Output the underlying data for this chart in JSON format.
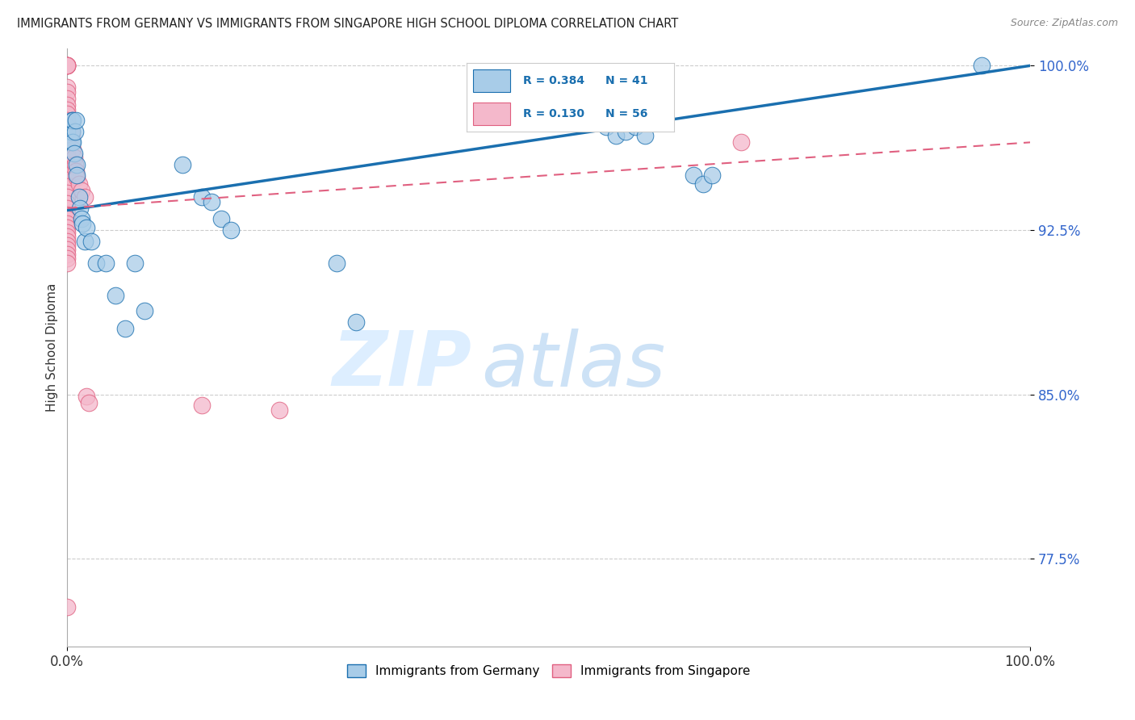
{
  "title": "IMMIGRANTS FROM GERMANY VS IMMIGRANTS FROM SINGAPORE HIGH SCHOOL DIPLOMA CORRELATION CHART",
  "source": "Source: ZipAtlas.com",
  "ylabel": "High School Diploma",
  "xlim": [
    0.0,
    1.0
  ],
  "ylim": [
    0.735,
    1.008
  ],
  "yticks": [
    0.775,
    0.85,
    0.925,
    1.0
  ],
  "ytick_labels": [
    "77.5%",
    "85.0%",
    "92.5%",
    "100.0%"
  ],
  "xtick_labels_pos": [
    0.0,
    1.0
  ],
  "xtick_labels": [
    "0.0%",
    "100.0%"
  ],
  "legend_R1": "0.384",
  "legend_N1": "41",
  "legend_R2": "0.130",
  "legend_N2": "56",
  "color_germany": "#a8cce8",
  "color_singapore": "#f4b8cb",
  "color_trend_germany": "#1a6faf",
  "color_trend_singapore": "#e06080",
  "watermark_zip": "ZIP",
  "watermark_atlas": "atlas",
  "germany_x": [
    0.0,
    0.005,
    0.005,
    0.005,
    0.006,
    0.006,
    0.007,
    0.008,
    0.009,
    0.01,
    0.01,
    0.012,
    0.013,
    0.015,
    0.016,
    0.018,
    0.02,
    0.025,
    0.03,
    0.04,
    0.05,
    0.06,
    0.07,
    0.08,
    0.12,
    0.14,
    0.15,
    0.16,
    0.17,
    0.28,
    0.3,
    0.55,
    0.56,
    0.57,
    0.58,
    0.59,
    0.6,
    0.65,
    0.66,
    0.67,
    0.95
  ],
  "germany_y": [
    0.97,
    0.965,
    0.97,
    0.975,
    0.965,
    0.975,
    0.96,
    0.97,
    0.975,
    0.955,
    0.95,
    0.94,
    0.935,
    0.93,
    0.928,
    0.92,
    0.926,
    0.92,
    0.91,
    0.91,
    0.895,
    0.88,
    0.91,
    0.888,
    0.955,
    0.94,
    0.938,
    0.93,
    0.925,
    0.91,
    0.883,
    0.975,
    0.972,
    0.968,
    0.97,
    0.972,
    0.968,
    0.95,
    0.946,
    0.95,
    1.0
  ],
  "singapore_x": [
    0.0,
    0.0,
    0.0,
    0.0,
    0.0,
    0.0,
    0.0,
    0.0,
    0.0,
    0.0,
    0.0,
    0.0,
    0.0,
    0.0,
    0.0,
    0.0,
    0.0,
    0.0,
    0.0,
    0.0,
    0.0,
    0.0,
    0.0,
    0.0,
    0.0,
    0.0,
    0.0,
    0.0,
    0.0,
    0.0,
    0.005,
    0.005,
    0.006,
    0.007,
    0.008,
    0.009,
    0.01,
    0.012,
    0.015,
    0.018,
    0.02,
    0.022,
    0.14,
    0.22,
    0.0,
    0.0,
    0.0,
    0.0,
    0.0,
    0.0,
    0.0,
    0.0,
    0.0,
    0.0,
    0.7,
    0.0
  ],
  "singapore_y": [
    1.0,
    1.0,
    1.0,
    1.0,
    1.0,
    0.99,
    0.988,
    0.985,
    0.982,
    0.98,
    0.978,
    0.975,
    0.972,
    0.97,
    0.968,
    0.965,
    0.962,
    0.96,
    0.958,
    0.955,
    0.952,
    0.95,
    0.948,
    0.945,
    0.942,
    0.94,
    0.937,
    0.935,
    0.932,
    0.93,
    0.968,
    0.97,
    0.962,
    0.958,
    0.955,
    0.952,
    0.949,
    0.946,
    0.943,
    0.94,
    0.849,
    0.846,
    0.845,
    0.843,
    0.928,
    0.926,
    0.924,
    0.922,
    0.92,
    0.918,
    0.916,
    0.914,
    0.912,
    0.91,
    0.965,
    0.753
  ]
}
